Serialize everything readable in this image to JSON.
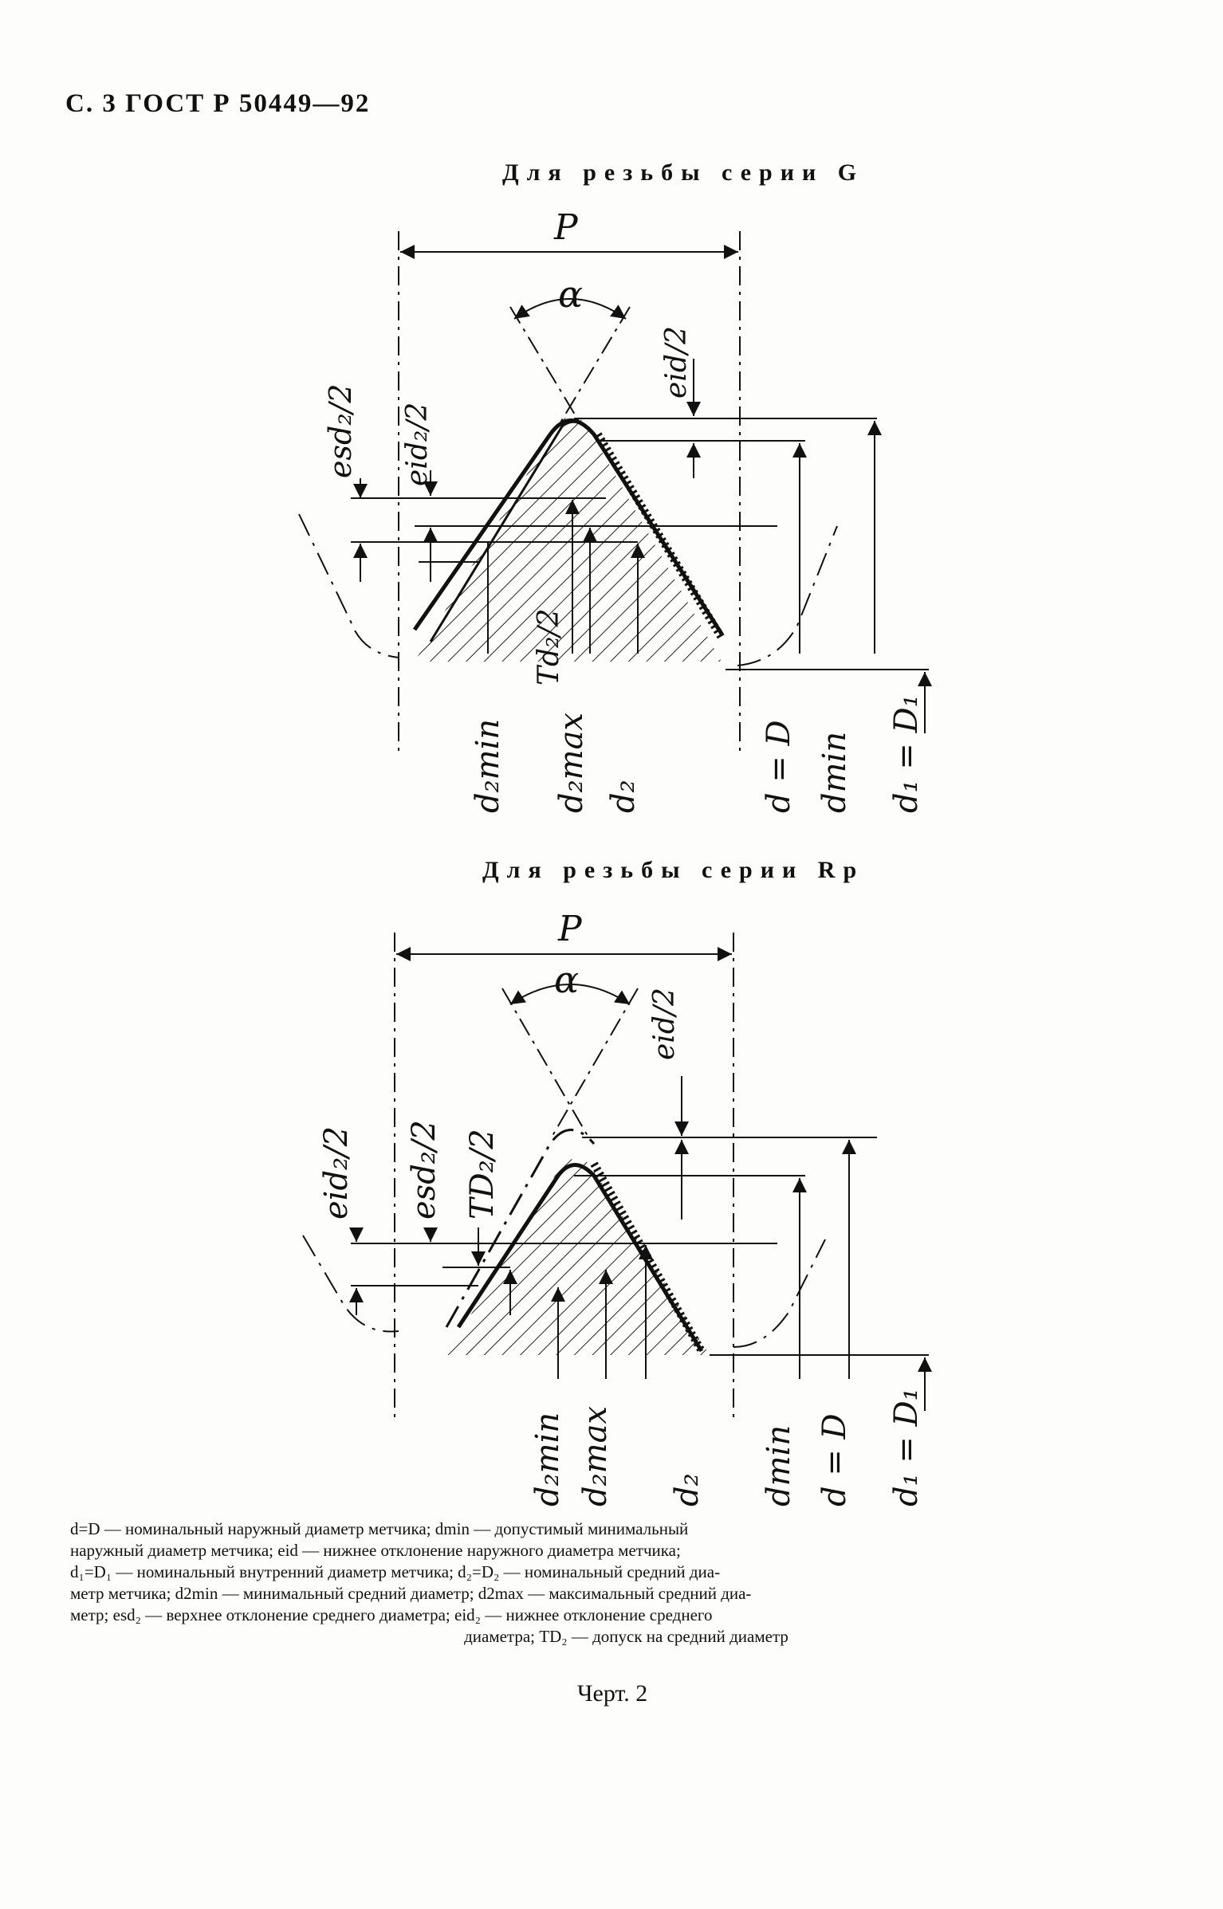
{
  "header": "С. 3 ГОСТ Р 50449—92",
  "figures": {
    "g": {
      "title": "Для резьбы серии G",
      "labels": {
        "p": "P",
        "alpha": "α",
        "eid2": "eid/2",
        "esd2_2": "esd₂/2",
        "eid2_2": "eid₂/2",
        "td2_2": "Td₂/2",
        "d2min": "d₂min",
        "d2max": "d₂max",
        "d2": "d₂",
        "d_eq_D": "d = D",
        "dmin": "dmin",
        "d1_eq_D1": "d₁ = D₁"
      }
    },
    "rp": {
      "title": "Для резьбы серии Rp",
      "labels": {
        "p": "P",
        "alpha": "α",
        "eid2": "eid/2",
        "eid2_2": "eid₂/2",
        "esd2_2": "esd₂/2",
        "td2_2": "TD₂/2",
        "d2min": "d₂min",
        "d2max": "d₂max",
        "d2": "d₂",
        "dmin": "dmin",
        "d_eq_D": "d = D",
        "d1_eq_D1": "d₁ = D₁"
      }
    }
  },
  "legend": {
    "line1": "d=D — номинальный наружный диаметр метчика; dmin — допустимый минимальный",
    "line2": "наружный диаметр метчика; eid — нижнее отклонение наружного диаметра метчика;",
    "line3": "d₁=D₁ — номинальный внутренний диаметр метчика; d₂=D₂ — номинальный средний диа-",
    "line4": "метр метчика; d2min — минимальный средний диаметр; d2max — максимальный средний диа-",
    "line5": "метр; esd₂ — верхнее отклонение среднего диаметра; eid₂ — нижнее отклонение среднего",
    "line6": "диаметра; TD₂ — допуск на средний диаметр"
  },
  "caption": "Черт. 2"
}
